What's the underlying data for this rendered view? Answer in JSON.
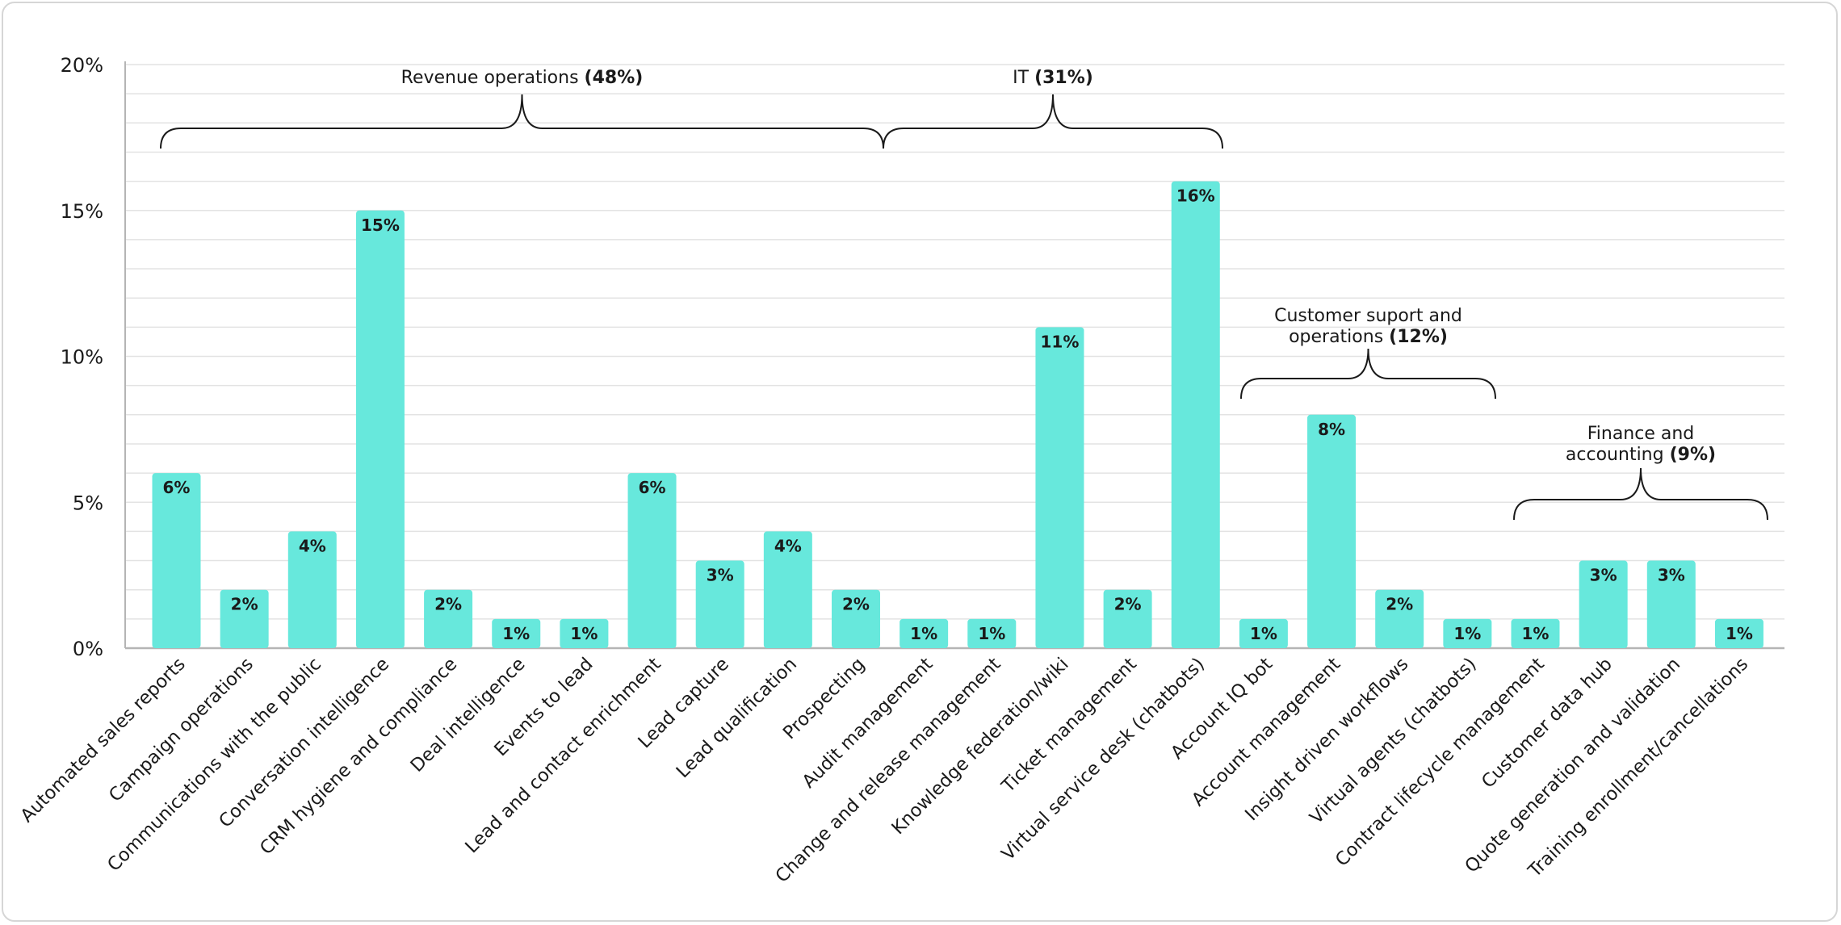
{
  "chart_data": {
    "type": "bar",
    "ylim": [
      0,
      20
    ],
    "yticks": [
      "0%",
      "5%",
      "10%",
      "15%",
      "20%"
    ],
    "grid": true,
    "bar_color": "#67e8dc",
    "categories": [
      "Automated sales reports",
      "Campaign operations",
      "Communications with the public",
      "Conversation intelligence",
      "CRM hygiene and compliance",
      "Deal intelligence",
      "Events to lead",
      "Lead and contact enrichment",
      "Lead capture",
      "Lead qualification",
      "Prospecting",
      "Audit management",
      "Change and release management",
      "Knowledge federation/wiki",
      "Ticket management",
      "Virtual service desk (chatbots)",
      "Account IQ bot",
      "Account management",
      "Insight driven workflows",
      "Virtual agents (chatbots)",
      "Contract lifecycle management",
      "Customer data hub",
      "Quote generation and validation",
      "Training enrollment/cancellations"
    ],
    "values": [
      6,
      2,
      4,
      15,
      2,
      1,
      1,
      6,
      3,
      4,
      2,
      1,
      1,
      11,
      2,
      16,
      1,
      8,
      2,
      1,
      1,
      3,
      3,
      1
    ],
    "labels": [
      "6%",
      "2%",
      "4%",
      "15%",
      "2%",
      "1%",
      "1%",
      "6%",
      "3%",
      "4%",
      "2%",
      "1%",
      "1%",
      "11%",
      "2%",
      "16%",
      "1%",
      "8%",
      "2%",
      "1%",
      "1%",
      "3%",
      "3%",
      "1%"
    ],
    "groups": [
      {
        "name": "Revenue operations",
        "pct": "(48%)",
        "start": 0,
        "end": 10
      },
      {
        "name": "IT",
        "pct": "(31%)",
        "start": 11,
        "end": 15
      },
      {
        "name": "Customer suport and",
        "name2": "operations",
        "pct": "(12%)",
        "start": 16,
        "end": 19
      },
      {
        "name": "Finance and",
        "name2": "accounting",
        "pct": "(9%)",
        "start": 20,
        "end": 23
      }
    ]
  }
}
